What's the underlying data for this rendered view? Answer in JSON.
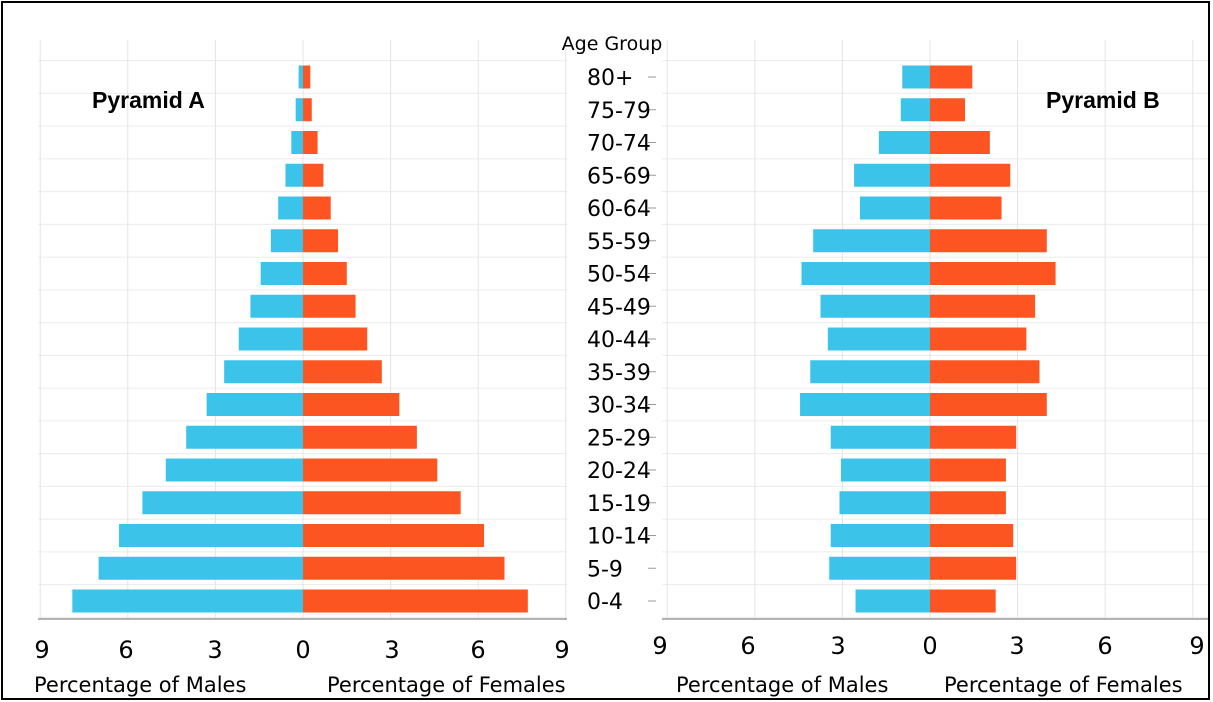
{
  "chart_data": [
    {
      "type": "bar",
      "title": "Pyramid A",
      "categories": [
        "0-4",
        "5-9",
        "10-14",
        "15-19",
        "20-24",
        "25-29",
        "30-34",
        "35-39",
        "40-44",
        "45-49",
        "50-54",
        "55-59",
        "60-64",
        "65-69",
        "70-74",
        "75-79",
        "80+"
      ],
      "series": [
        {
          "name": "Males",
          "values": [
            7.9,
            7.0,
            6.3,
            5.5,
            4.7,
            4.0,
            3.3,
            2.7,
            2.2,
            1.8,
            1.45,
            1.1,
            0.85,
            0.6,
            0.4,
            0.25,
            0.15
          ],
          "color": "#3cc3ea"
        },
        {
          "name": "Females",
          "values": [
            7.7,
            6.9,
            6.2,
            5.4,
            4.6,
            3.9,
            3.3,
            2.7,
            2.2,
            1.8,
            1.5,
            1.2,
            0.95,
            0.7,
            0.5,
            0.3,
            0.25
          ],
          "color": "#fc5522"
        }
      ],
      "xlabel_left": "Percentage of Males",
      "xlabel_right": "Percentage of Females",
      "xticks": [
        "9",
        "6",
        "3",
        "0",
        "3",
        "6",
        "9"
      ],
      "xlim": [
        -9,
        9
      ]
    },
    {
      "type": "bar",
      "title": "Pyramid B",
      "categories": [
        "0-4",
        "5-9",
        "10-14",
        "15-19",
        "20-24",
        "25-29",
        "30-34",
        "35-39",
        "40-44",
        "45-49",
        "50-54",
        "55-59",
        "60-64",
        "65-69",
        "70-74",
        "75-79",
        "80+"
      ],
      "series": [
        {
          "name": "Males",
          "values": [
            2.55,
            3.45,
            3.4,
            3.1,
            3.05,
            3.4,
            4.45,
            4.1,
            3.5,
            3.75,
            4.4,
            4.0,
            2.4,
            2.6,
            1.75,
            1.0,
            0.95
          ],
          "color": "#3cc3ea"
        },
        {
          "name": "Females",
          "values": [
            2.25,
            2.95,
            2.85,
            2.6,
            2.6,
            2.95,
            4.0,
            3.75,
            3.3,
            3.6,
            4.3,
            4.0,
            2.45,
            2.75,
            2.05,
            1.2,
            1.45
          ],
          "color": "#fc5522"
        }
      ],
      "xlabel_left": "Percentage of Males",
      "xlabel_right": "Percentage of Females",
      "xticks": [
        "9",
        "6",
        "3",
        "0",
        "3",
        "6",
        "9"
      ],
      "xlim": [
        -9,
        9
      ]
    }
  ],
  "age_axis": {
    "title": "Age Group",
    "labels": [
      "80+",
      "75-79",
      "70-74",
      "65-69",
      "60-64",
      "55-59",
      "50-54",
      "45-49",
      "40-44",
      "35-39",
      "30-34",
      "25-29",
      "20-24",
      "15-19",
      "10-14",
      "5-9",
      "0-4"
    ]
  }
}
